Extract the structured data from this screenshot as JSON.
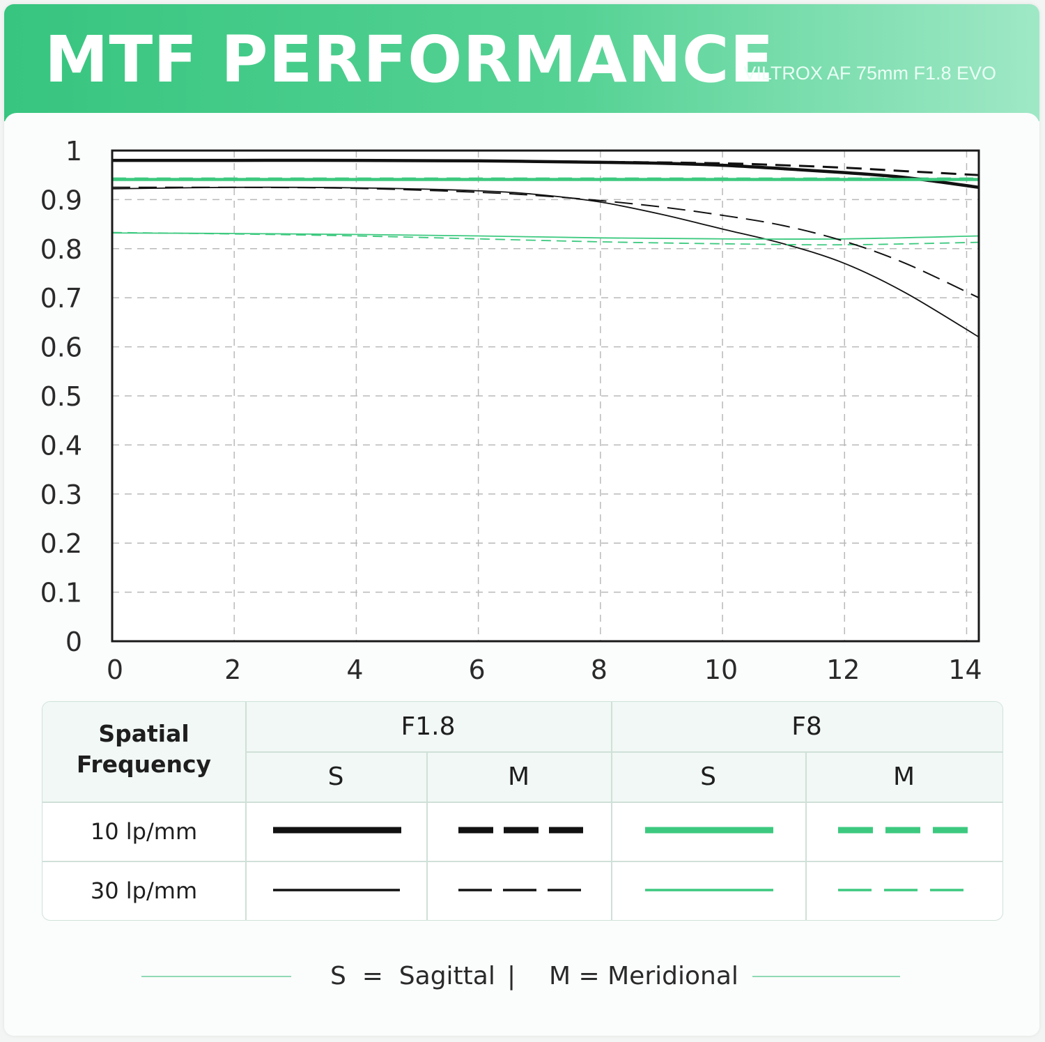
{
  "header": {
    "title": "MTF PERFORMANCE",
    "subtitle": "VILTROX AF 75mm F1.8 EVO"
  },
  "colors": {
    "accent": "#3cc97f",
    "black": "#111111",
    "grid": "#b9b9b9"
  },
  "chart_data": {
    "type": "line",
    "xlim": [
      0,
      14.2
    ],
    "ylim": [
      0,
      1
    ],
    "xticks": [
      "0",
      "2",
      "4",
      "6",
      "8",
      "10",
      "12",
      "14"
    ],
    "yticks": [
      "0",
      "0.1",
      "0.2",
      "0.3",
      "0.4",
      "0.5",
      "0.6",
      "0.7",
      "0.8",
      "0.9",
      "1"
    ],
    "grid": true,
    "series": [
      {
        "aperture": "F1.8",
        "freq": "10 lp/mm",
        "type": "S",
        "color": "#111111",
        "width": 4.5,
        "dash": "none",
        "x": [
          0,
          2,
          4,
          6,
          8,
          9,
          10,
          11,
          12,
          13,
          14.2
        ],
        "y": [
          0.98,
          0.98,
          0.98,
          0.979,
          0.976,
          0.974,
          0.97,
          0.963,
          0.955,
          0.945,
          0.925
        ]
      },
      {
        "aperture": "F1.8",
        "freq": "10 lp/mm",
        "type": "M",
        "color": "#111111",
        "width": 3,
        "dash": "22 12",
        "x": [
          0,
          2,
          4,
          6,
          8,
          10,
          11,
          12,
          13,
          14.2
        ],
        "y": [
          0.98,
          0.98,
          0.98,
          0.979,
          0.977,
          0.974,
          0.97,
          0.965,
          0.958,
          0.95
        ]
      },
      {
        "aperture": "F1.8",
        "freq": "30 lp/mm",
        "type": "S",
        "color": "#111111",
        "width": 1.8,
        "dash": "none",
        "x": [
          0,
          2,
          4,
          6,
          7,
          8,
          9,
          10,
          11,
          12,
          13,
          14.2
        ],
        "y": [
          0.922,
          0.925,
          0.924,
          0.918,
          0.91,
          0.895,
          0.87,
          0.84,
          0.81,
          0.77,
          0.71,
          0.62
        ]
      },
      {
        "aperture": "F1.8",
        "freq": "30 lp/mm",
        "type": "M",
        "color": "#111111",
        "width": 2,
        "dash": "26 12",
        "x": [
          0,
          2,
          4,
          6,
          7,
          8,
          9,
          10,
          11,
          12,
          13,
          14.2
        ],
        "y": [
          0.925,
          0.925,
          0.923,
          0.915,
          0.908,
          0.898,
          0.885,
          0.868,
          0.847,
          0.815,
          0.77,
          0.7
        ]
      },
      {
        "aperture": "F8",
        "freq": "10 lp/mm",
        "type": "S",
        "color": "#3cc97f",
        "width": 4.5,
        "dash": "none",
        "x": [
          0,
          14.2
        ],
        "y": [
          0.941,
          0.941
        ]
      },
      {
        "aperture": "F8",
        "freq": "10 lp/mm",
        "type": "M",
        "color": "#3cc97f",
        "width": 3,
        "dash": "20 12",
        "x": [
          0,
          14.2
        ],
        "y": [
          0.943,
          0.943
        ]
      },
      {
        "aperture": "F8",
        "freq": "30 lp/mm",
        "type": "S",
        "color": "#3cc97f",
        "width": 1.8,
        "dash": "none",
        "x": [
          0,
          2,
          4,
          6,
          8,
          10,
          12,
          14.2
        ],
        "y": [
          0.832,
          0.831,
          0.829,
          0.826,
          0.822,
          0.82,
          0.82,
          0.826
        ]
      },
      {
        "aperture": "F8",
        "freq": "30 lp/mm",
        "type": "M",
        "color": "#3cc97f",
        "width": 1.8,
        "dash": "14 8",
        "x": [
          0,
          2,
          4,
          6,
          8,
          10,
          12,
          14.2
        ],
        "y": [
          0.833,
          0.83,
          0.826,
          0.82,
          0.814,
          0.81,
          0.808,
          0.813
        ]
      }
    ]
  },
  "legend": {
    "freq_header": "Spatial\nFrequency",
    "apertures": [
      "F1.8",
      "F8"
    ],
    "sm": [
      "S",
      "M",
      "S",
      "M"
    ],
    "rows": [
      "10 lp/mm",
      "30 lp/mm"
    ]
  },
  "footer": {
    "sagittal": "S  =  Sagittal",
    "separator": "|",
    "meridional": "M = Meridional"
  }
}
